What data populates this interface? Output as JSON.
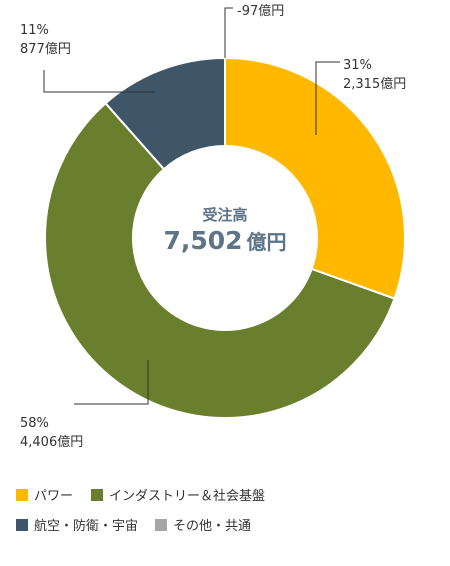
{
  "chart_data": {
    "type": "pie",
    "donut": true,
    "unit": "億円",
    "total": {
      "label": "受注高",
      "value": "7,502",
      "unit": "億円"
    },
    "slices": [
      {
        "name": "パワー",
        "value": 2315,
        "percent": "31%",
        "value_label": "2,315億円",
        "color": "#ffb800"
      },
      {
        "name": "インダストリー&社会基盤",
        "value": 4406,
        "percent": "58%",
        "value_label": "4,406億円",
        "color": "#6a7f2d"
      },
      {
        "name": "航空・防衛・宇宙",
        "value": 877,
        "percent": "11%",
        "value_label": "877億円",
        "color": "#3e5667"
      },
      {
        "name": "その他・共通",
        "value": -97,
        "percent": "",
        "value_label": "-97億円",
        "color": "#a5a5a5"
      }
    ],
    "legend": [
      {
        "label": "パワー",
        "color": "#ffb800"
      },
      {
        "label": "インダストリー＆社会基盤",
        "color": "#6a7f2d"
      },
      {
        "label": "航空・防衛・宇宙",
        "color": "#3e5667"
      },
      {
        "label": "その他・共通",
        "color": "#a5a5a5"
      }
    ]
  }
}
